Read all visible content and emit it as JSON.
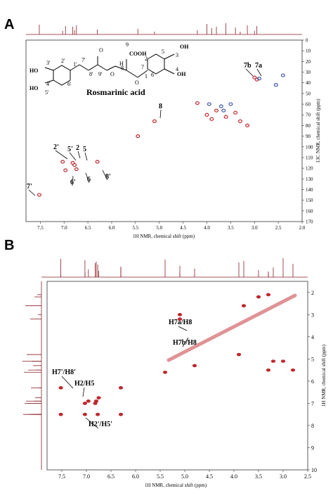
{
  "panels": [
    {
      "letter": "A",
      "structure_title": "Rosmarinic acid",
      "xlabel": "1H NMR, chemical shift (ppm)",
      "ylabel": "13C NMR, chemical shift (ppm)",
      "x_ticks": [
        "7.5",
        "7.0",
        "6.5",
        "6.0",
        "5.5",
        "5.0",
        "4.5",
        "4.0",
        "3.5",
        "3.0",
        "2.5",
        "2.0"
      ],
      "y_ticks": [
        "0",
        "10",
        "20",
        "30",
        "40",
        "50",
        "60",
        "70",
        "80",
        "90",
        "100",
        "110",
        "120",
        "130",
        "140",
        "150",
        "160",
        "170"
      ],
      "labels": [
        "8",
        "7b",
        "7a",
        "2'",
        "5'",
        "2",
        "5",
        "6",
        "6'",
        "8'",
        "7'"
      ],
      "atom_labels": [
        "HO",
        "3'",
        "4'",
        "HO",
        "2'",
        "1'",
        "5'",
        "6'",
        "7'",
        "8'",
        "9'",
        "O",
        "O",
        "O",
        "9",
        "COOH",
        "8",
        "7",
        "H",
        "1",
        "2",
        "3",
        "4",
        "5",
        "6",
        "OH",
        "OH"
      ]
    },
    {
      "letter": "B",
      "xlabel": "1H NMR, chemical shift (ppm)",
      "ylabel": "1H NMR, chemical shift (ppm)",
      "x_ticks": [
        "7.5",
        "7.0",
        "6.5",
        "6.0",
        "5.5",
        "5.0",
        "4.5",
        "4.0",
        "3.5",
        "3.0",
        "2.5"
      ],
      "y_ticks": [
        "2",
        "3",
        "4",
        "5",
        "6",
        "7",
        "8",
        "9",
        "10"
      ],
      "labels": [
        "H7a/H8",
        "H7b/H8",
        "H7'/H8'",
        "H2/H5",
        "H2'/H5'"
      ]
    }
  ],
  "colors": {
    "red": "#c0272d",
    "blue": "#3a56a8",
    "frame": "#333333"
  },
  "chart_data": [
    {
      "type": "scatter",
      "title": "",
      "xlabel": "1H NMR, chemical shift (ppm)",
      "ylabel": "13C NMR, chemical shift (ppm)",
      "xlim": [
        7.8,
        2.0
      ],
      "ylim": [
        170,
        0
      ],
      "series": [
        {
          "color": "red",
          "points": [
            [
              5.1,
              76
            ],
            [
              6.82,
              115
            ],
            [
              7.03,
              114
            ],
            [
              6.97,
              122
            ],
            [
              6.78,
              117
            ],
            [
              6.74,
              121
            ],
            [
              6.3,
              114
            ],
            [
              7.52,
              145
            ],
            [
              5.45,
              90
            ],
            [
              4.0,
              70
            ],
            [
              3.9,
              74
            ],
            [
              3.6,
              72
            ],
            [
              3.4,
              68
            ],
            [
              3.3,
              76
            ],
            [
              3.8,
              66
            ],
            [
              3.0,
              35
            ],
            [
              2.95,
              37
            ],
            [
              4.2,
              59
            ],
            [
              3.15,
              80
            ]
          ]
        },
        {
          "color": "blue",
          "points": [
            [
              3.95,
              60
            ],
            [
              3.7,
              62
            ],
            [
              3.5,
              60
            ],
            [
              3.65,
              66
            ],
            [
              2.9,
              36
            ],
            [
              2.4,
              33
            ],
            [
              2.55,
              42
            ]
          ]
        }
      ]
    },
    {
      "type": "scatter",
      "title": "",
      "xlabel": "1H NMR, chemical shift (ppm)",
      "ylabel": "1H NMR, chemical shift (ppm)",
      "xlim": [
        7.8,
        2.5
      ],
      "ylim": [
        10,
        1.5
      ],
      "series": [
        {
          "color": "red",
          "points": [
            [
              7.52,
              6.3
            ],
            [
              6.3,
              6.3
            ],
            [
              7.52,
              7.5
            ],
            [
              6.3,
              7.5
            ],
            [
              7.03,
              7.0
            ],
            [
              6.96,
              6.9
            ],
            [
              6.8,
              6.9
            ],
            [
              6.75,
              6.75
            ],
            [
              6.82,
              7.0
            ],
            [
              7.03,
              7.5
            ],
            [
              6.77,
              7.5
            ],
            [
              5.1,
              3.0
            ],
            [
              5.1,
              3.2
            ],
            [
              3.0,
              5.1
            ],
            [
              3.2,
              5.1
            ],
            [
              5.4,
              5.6
            ],
            [
              4.8,
              5.3
            ],
            [
              3.8,
              2.6
            ],
            [
              3.5,
              2.2
            ],
            [
              3.9,
              4.8
            ],
            [
              3.3,
              5.5
            ],
            [
              2.8,
              5.5
            ],
            [
              3.3,
              2.1
            ]
          ]
        }
      ]
    }
  ]
}
